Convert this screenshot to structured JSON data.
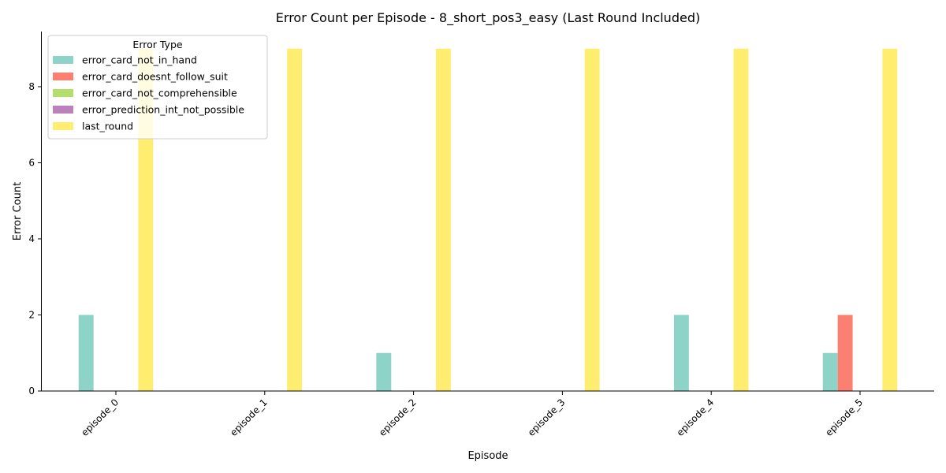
{
  "chart_data": {
    "type": "bar",
    "title": "Error Count per Episode - 8_short_pos3_easy (Last Round Included)",
    "xlabel": "Episode",
    "ylabel": "Error Count",
    "categories": [
      "episode_0",
      "episode_1",
      "episode_2",
      "episode_3",
      "episode_4",
      "episode_5"
    ],
    "ylim": [
      0,
      9.45
    ],
    "yticks": [
      0,
      2,
      4,
      6,
      8
    ],
    "grid": false,
    "legend": {
      "title": "Error Type",
      "placement": "top-left"
    },
    "series": [
      {
        "name": "error_card_not_in_hand",
        "color": "#8dd3c7",
        "values": [
          2,
          0,
          1,
          0,
          2,
          1
        ]
      },
      {
        "name": "error_card_doesnt_follow_suit",
        "color": "#fb8072",
        "values": [
          0,
          0,
          0,
          0,
          0,
          2
        ]
      },
      {
        "name": "error_card_not_comprehensible",
        "color": "#b3de69",
        "values": [
          0,
          0,
          0,
          0,
          0,
          0
        ]
      },
      {
        "name": "error_prediction_int_not_possible",
        "color": "#bc80bd",
        "values": [
          0,
          0,
          0,
          0,
          0,
          0
        ]
      },
      {
        "name": "last_round",
        "color": "#ffed6f",
        "values": [
          9,
          9,
          9,
          9,
          9,
          9
        ]
      }
    ]
  }
}
